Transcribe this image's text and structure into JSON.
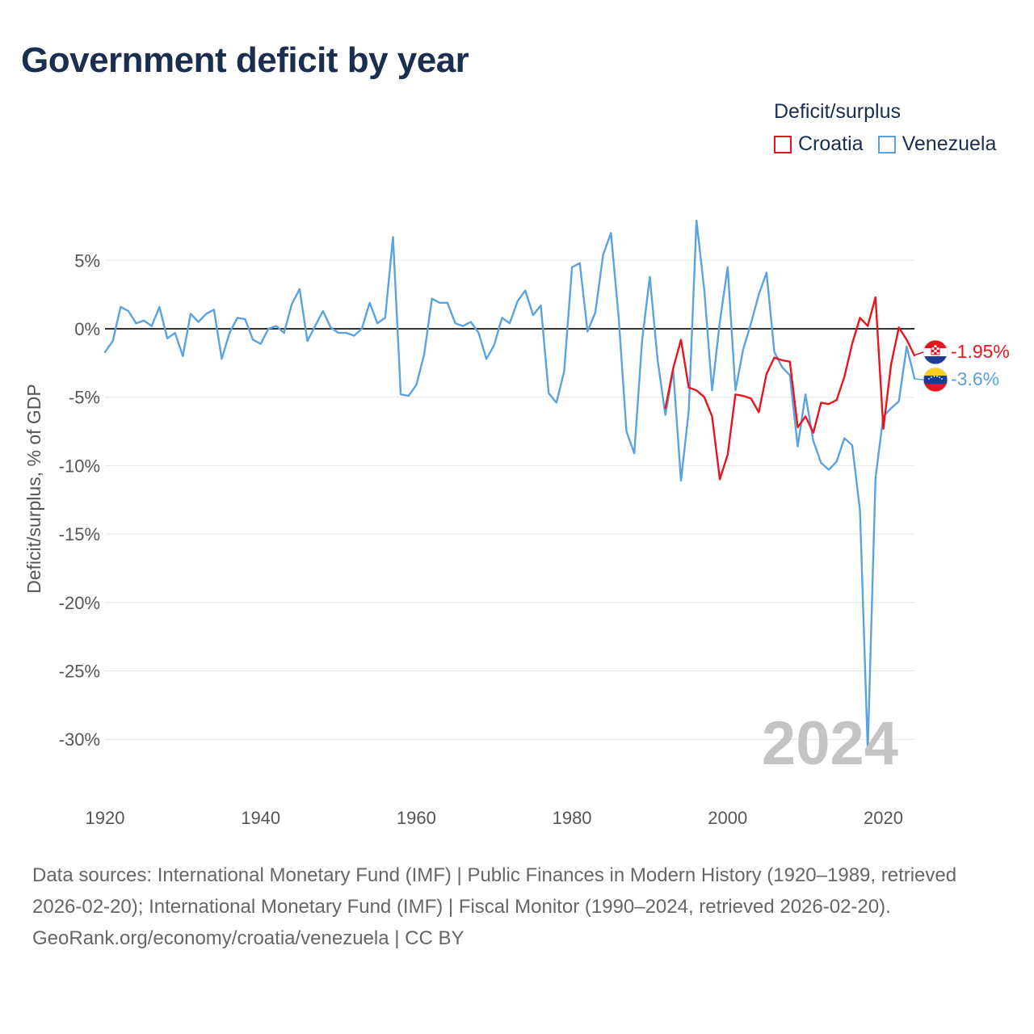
{
  "title": "Government deficit by year",
  "legend": {
    "title": "Deficit/surplus",
    "items": [
      {
        "label": "Croatia",
        "color": "#e8141e"
      },
      {
        "label": "Venezuela",
        "color": "#5aa3e0"
      }
    ]
  },
  "year_watermark": "2024",
  "footer": {
    "sources": "Data sources: International Monetary Fund (IMF) | Public Finances in Modern History (1920–1989, retrieved 2026-02-20); International Monetary Fund (IMF) | Fiscal Monitor (1990–2024, retrieved 2026-02-20).",
    "credit": "GeoRank.org/economy/croatia/venezuela | CC BY"
  },
  "chart_data": {
    "type": "line",
    "title": "Government deficit by year",
    "xlabel": "",
    "ylabel": "Deficit/surplus, % of GDP",
    "xlim": [
      1920,
      2024
    ],
    "ylim": [
      -33,
      9
    ],
    "x_ticks": [
      1920,
      1940,
      1960,
      1980,
      2000,
      2020
    ],
    "y_ticks": [
      5,
      0,
      -5,
      -10,
      -15,
      -20,
      -25,
      -30
    ],
    "y_tick_labels": [
      "5%",
      "0%",
      "-5%",
      "-10%",
      "-15%",
      "-20%",
      "-25%",
      "-30%"
    ],
    "zero_line": true,
    "series": [
      {
        "name": "Croatia",
        "color": "#e8141e",
        "end_label": "-1.95%",
        "x": [
          1992,
          1993,
          1994,
          1995,
          1996,
          1997,
          1998,
          1999,
          2000,
          2001,
          2002,
          2003,
          2004,
          2005,
          2006,
          2007,
          2008,
          2009,
          2010,
          2011,
          2012,
          2013,
          2014,
          2015,
          2016,
          2017,
          2018,
          2019,
          2020,
          2021,
          2022,
          2023,
          2024
        ],
        "values": [
          -5.8,
          -2.9,
          -0.8,
          -4.3,
          -4.5,
          -5,
          -6.4,
          -11,
          -9.2,
          -4.8,
          -4.9,
          -5.1,
          -6.1,
          -3.3,
          -2.1,
          -2.3,
          -2.4,
          -7.2,
          -6.4,
          -7.6,
          -5.4,
          -5.5,
          -5.2,
          -3.5,
          -1.1,
          0.8,
          0.2,
          2.3,
          -7.3,
          -2.6,
          0.1,
          -0.8,
          -1.95
        ]
      },
      {
        "name": "Venezuela",
        "color": "#5aa3e0",
        "end_label": "-3.6%",
        "x": [
          1920,
          1921,
          1922,
          1923,
          1924,
          1925,
          1926,
          1927,
          1928,
          1929,
          1930,
          1931,
          1932,
          1933,
          1934,
          1935,
          1936,
          1937,
          1938,
          1939,
          1940,
          1941,
          1942,
          1943,
          1944,
          1945,
          1946,
          1947,
          1948,
          1949,
          1950,
          1951,
          1952,
          1953,
          1954,
          1955,
          1956,
          1957,
          1958,
          1959,
          1960,
          1961,
          1962,
          1963,
          1964,
          1965,
          1966,
          1967,
          1968,
          1969,
          1970,
          1971,
          1972,
          1973,
          1974,
          1975,
          1976,
          1977,
          1978,
          1979,
          1980,
          1981,
          1982,
          1983,
          1984,
          1985,
          1986,
          1987,
          1988,
          1989,
          1990,
          1991,
          1992,
          1993,
          1994,
          1995,
          1996,
          1997,
          1998,
          1999,
          2000,
          2001,
          2002,
          2003,
          2004,
          2005,
          2006,
          2007,
          2008,
          2009,
          2010,
          2011,
          2012,
          2013,
          2014,
          2015,
          2016,
          2017,
          2018,
          2019,
          2020,
          2021,
          2022,
          2023,
          2024
        ],
        "values": [
          -1.7,
          -0.9,
          1.6,
          1.3,
          0.4,
          0.6,
          0.2,
          1.6,
          -0.7,
          -0.3,
          -2,
          1.1,
          0.5,
          1.1,
          1.4,
          -2.2,
          -0.3,
          0.8,
          0.7,
          -0.8,
          -1.1,
          0,
          0.2,
          -0.3,
          1.8,
          2.9,
          -0.9,
          0.2,
          1.3,
          0.1,
          -0.3,
          -0.3,
          -0.5,
          0,
          1.9,
          0.4,
          0.8,
          6.7,
          -4.8,
          -4.9,
          -4.1,
          -1.9,
          2.2,
          1.9,
          1.9,
          0.4,
          0.2,
          0.5,
          -0.3,
          -2.2,
          -1.2,
          0.8,
          0.4,
          2,
          2.8,
          1,
          1.7,
          -4.7,
          -5.4,
          -3.1,
          4.5,
          4.8,
          -0.2,
          1.2,
          5.4,
          7,
          0.8,
          -7.5,
          -9.1,
          -0.9,
          3.8,
          -2.3,
          -6.3,
          -3,
          -11.1,
          -6,
          7.9,
          2.8,
          -4.5,
          0.5,
          4.5,
          -4.5,
          -1.5,
          0.4,
          2.5,
          4.1,
          -1.7,
          -2.8,
          -3.4,
          -8.6,
          -4.8,
          -8.2,
          -9.8,
          -10.3,
          -9.7,
          -8,
          -8.5,
          -13.3,
          -30.8,
          -10.9,
          -6.4,
          -5.8,
          -5.3,
          -1.3,
          -3.6
        ]
      }
    ]
  }
}
